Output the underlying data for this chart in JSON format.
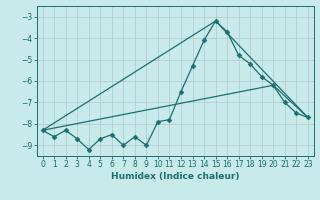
{
  "title": "",
  "xlabel": "Humidex (Indice chaleur)",
  "ylabel": "",
  "background_color": "#c8eaea",
  "grid_color": "#b0c8c8",
  "line_color": "#1a7070",
  "spine_color": "#1a7070",
  "xlim": [
    -0.5,
    23.5
  ],
  "ylim": [
    -9.5,
    -2.5
  ],
  "xticks": [
    0,
    1,
    2,
    3,
    4,
    5,
    6,
    7,
    8,
    9,
    10,
    11,
    12,
    13,
    14,
    15,
    16,
    17,
    18,
    19,
    20,
    21,
    22,
    23
  ],
  "yticks": [
    -9,
    -8,
    -7,
    -6,
    -5,
    -4,
    -3
  ],
  "series": [
    [
      0,
      -8.3
    ],
    [
      1,
      -8.6
    ],
    [
      2,
      -8.3
    ],
    [
      3,
      -8.7
    ],
    [
      4,
      -9.2
    ],
    [
      5,
      -8.7
    ],
    [
      6,
      -8.5
    ],
    [
      7,
      -9.0
    ],
    [
      8,
      -8.6
    ],
    [
      9,
      -9.0
    ],
    [
      10,
      -7.9
    ],
    [
      11,
      -7.8
    ],
    [
      12,
      -6.5
    ],
    [
      13,
      -5.3
    ],
    [
      14,
      -4.1
    ],
    [
      15,
      -3.2
    ],
    [
      16,
      -3.7
    ],
    [
      17,
      -4.8
    ],
    [
      18,
      -5.2
    ],
    [
      19,
      -5.8
    ],
    [
      20,
      -6.2
    ],
    [
      21,
      -7.0
    ],
    [
      22,
      -7.5
    ],
    [
      23,
      -7.7
    ]
  ],
  "line2": [
    [
      0,
      -8.3
    ],
    [
      15,
      -3.2
    ],
    [
      23,
      -7.7
    ]
  ],
  "line3": [
    [
      0,
      -8.3
    ],
    [
      20,
      -6.2
    ],
    [
      23,
      -7.7
    ]
  ],
  "tick_fontsize": 5.5,
  "xlabel_fontsize": 6.5,
  "lw": 0.9,
  "ms": 2.5
}
